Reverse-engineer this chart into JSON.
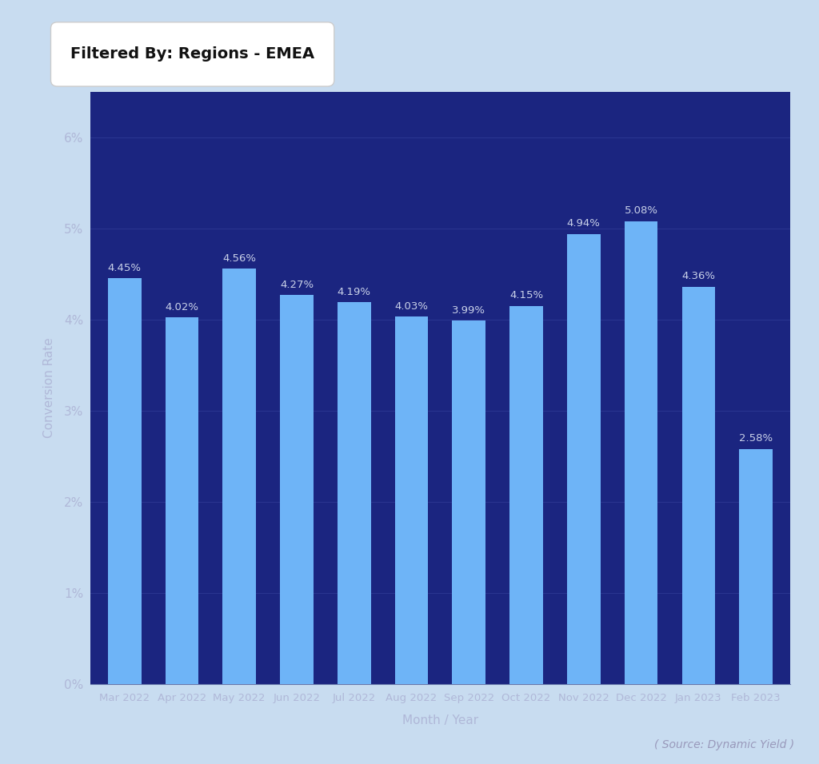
{
  "categories": [
    "Mar 2022",
    "Apr 2022",
    "May 2022",
    "Jun 2022",
    "Jul 2022",
    "Aug 2022",
    "Sep 2022",
    "Oct 2022",
    "Nov 2022",
    "Dec 2022",
    "Jan 2023",
    "Feb 2023"
  ],
  "values": [
    4.45,
    4.02,
    4.56,
    4.27,
    4.19,
    4.03,
    3.99,
    4.15,
    4.94,
    5.08,
    4.36,
    2.58
  ],
  "bar_color": "#6EB4F7",
  "background_color": "#1B2580",
  "outer_background": "#C8DCF0",
  "axis_text_color": "#B0B8D8",
  "bar_label_color": "#C8D0E8",
  "ylabel": "Conversion Rate",
  "xlabel": "Month / Year",
  "filter_label": "Filtered By: Regions - EMEA",
  "source_label": "( Source: Dynamic Yield )",
  "ylim": [
    0,
    6.5
  ],
  "yticks": [
    0,
    1,
    2,
    3,
    4,
    5,
    6
  ],
  "ytick_labels": [
    "0%",
    "1%",
    "2%",
    "3%",
    "4%",
    "5%",
    "6%"
  ],
  "title_text_color": "#111111",
  "source_text_color": "#9999BB",
  "grid_color": "#2A3590",
  "spine_color": "#6677AA"
}
